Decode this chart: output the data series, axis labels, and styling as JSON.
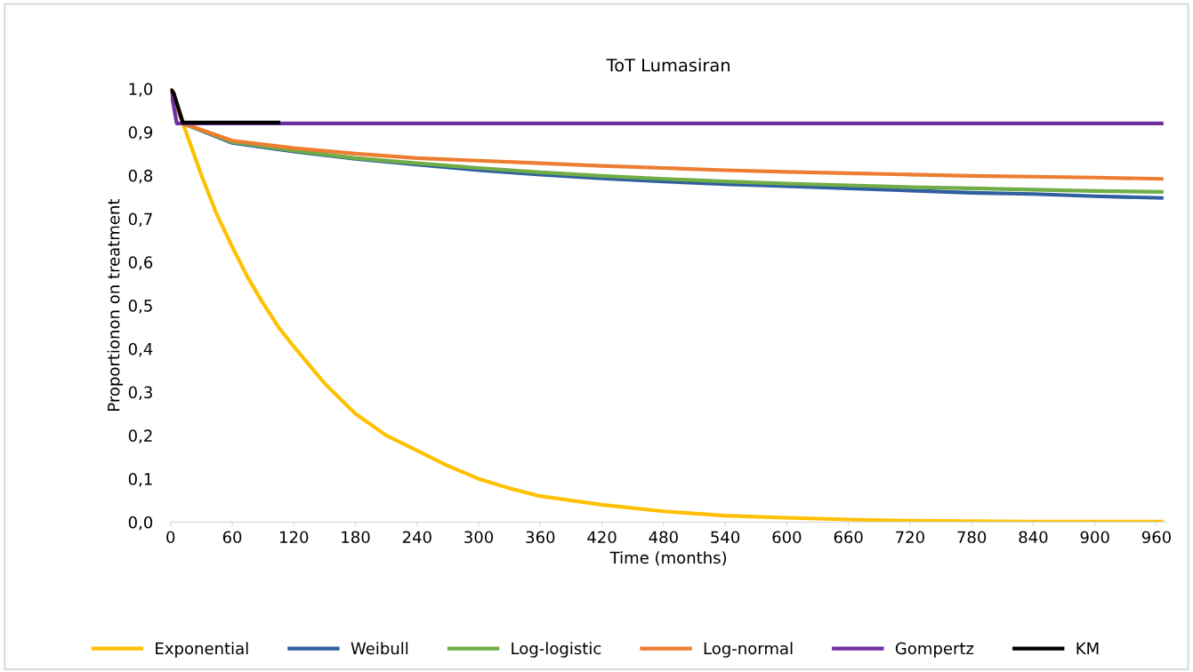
{
  "chart_data": {
    "type": "line",
    "title": "ToT Lumasiran",
    "xlabel": "Time (months)",
    "ylabel": "Proportionon on treatment",
    "xlim": [
      0,
      970
    ],
    "xticks": [
      0,
      60,
      120,
      180,
      240,
      300,
      360,
      420,
      480,
      540,
      600,
      660,
      720,
      780,
      840,
      900,
      960
    ],
    "ylim": [
      0,
      1.0
    ],
    "yticks": [
      {
        "value": 0,
        "label": "0,0"
      },
      {
        "value": 0.1,
        "label": "0,1"
      },
      {
        "value": 0.2,
        "label": "0,2"
      },
      {
        "value": 0.3,
        "label": "0,3"
      },
      {
        "value": 0.4,
        "label": "0,4"
      },
      {
        "value": 0.5,
        "label": "0,5"
      },
      {
        "value": 0.6,
        "label": "0,6"
      },
      {
        "value": 0.7,
        "label": "0,7"
      },
      {
        "value": 0.8,
        "label": "0,8"
      },
      {
        "value": 0.9,
        "label": "0,9"
      },
      {
        "value": 1.0,
        "label": "1,0"
      }
    ],
    "grid": false,
    "legend": "bottom",
    "marker": "none",
    "line_style": "solid",
    "series": [
      {
        "name": "Exponential",
        "color": "#ffc000",
        "x": [
          0,
          12,
          30,
          45,
          60,
          75,
          90,
          105,
          120,
          150,
          180,
          210,
          240,
          270,
          300,
          330,
          360,
          390,
          420,
          480,
          540,
          600,
          660,
          720,
          780,
          840,
          900,
          965
        ],
        "values": [
          1.0,
          0.92,
          0.8,
          0.71,
          0.635,
          0.565,
          0.505,
          0.45,
          0.405,
          0.32,
          0.25,
          0.2,
          0.165,
          0.13,
          0.1,
          0.078,
          0.06,
          0.05,
          0.04,
          0.025,
          0.015,
          0.01,
          0.006,
          0.003,
          0.002,
          0.001,
          0.001,
          0.001
        ]
      },
      {
        "name": "Weibull",
        "color": "#2e5f9e",
        "x": [
          0,
          12,
          60,
          120,
          180,
          240,
          300,
          360,
          420,
          480,
          540,
          600,
          660,
          720,
          780,
          840,
          900,
          965
        ],
        "values": [
          1.0,
          0.92,
          0.875,
          0.855,
          0.838,
          0.825,
          0.812,
          0.802,
          0.793,
          0.786,
          0.78,
          0.775,
          0.77,
          0.765,
          0.76,
          0.757,
          0.752,
          0.748
        ]
      },
      {
        "name": "Log-logistic",
        "color": "#70ad47",
        "x": [
          0,
          12,
          60,
          120,
          180,
          240,
          300,
          360,
          420,
          480,
          540,
          600,
          660,
          720,
          780,
          840,
          900,
          965
        ],
        "values": [
          1.0,
          0.92,
          0.877,
          0.857,
          0.84,
          0.828,
          0.817,
          0.807,
          0.799,
          0.792,
          0.786,
          0.781,
          0.777,
          0.773,
          0.77,
          0.767,
          0.764,
          0.762
        ]
      },
      {
        "name": "Log-normal",
        "color": "#ed7d31",
        "x": [
          0,
          12,
          60,
          120,
          180,
          240,
          300,
          360,
          420,
          480,
          540,
          600,
          660,
          720,
          780,
          840,
          900,
          965
        ],
        "values": [
          1.0,
          0.92,
          0.88,
          0.863,
          0.85,
          0.84,
          0.834,
          0.828,
          0.822,
          0.817,
          0.812,
          0.808,
          0.805,
          0.802,
          0.799,
          0.797,
          0.795,
          0.792
        ]
      },
      {
        "name": "Gompertz",
        "color": "#7030a0",
        "x": [
          0,
          6,
          965
        ],
        "values": [
          1.0,
          0.92,
          0.92
        ]
      },
      {
        "name": "KM",
        "color": "#000000",
        "x": [
          0,
          3,
          12,
          105
        ],
        "values": [
          1.0,
          0.99,
          0.922,
          0.922
        ]
      }
    ]
  }
}
